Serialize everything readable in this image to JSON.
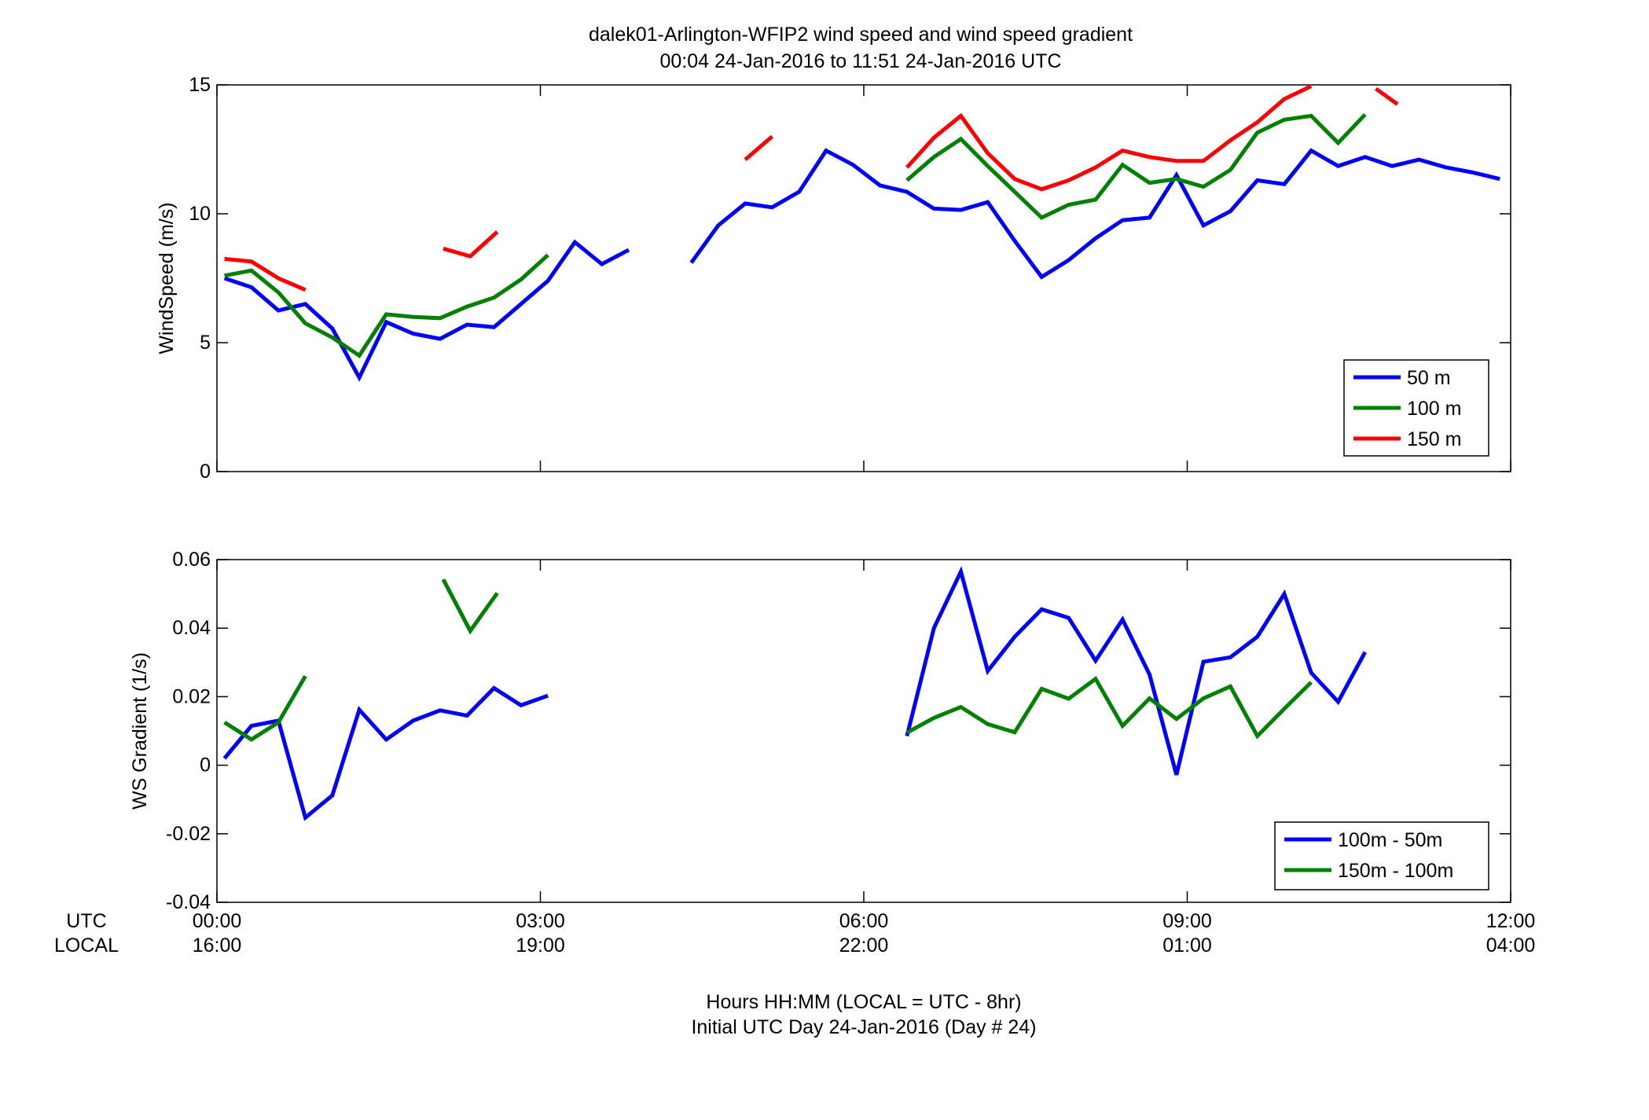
{
  "figure": {
    "title_line1": "dalek01-Arlington-WFIP2  wind speed and wind speed gradient",
    "title_line2": "00:04 24-Jan-2016 to 11:51 24-Jan-2016  UTC",
    "row_label_utc": "UTC",
    "row_label_local": "LOCAL",
    "xlabel_line1": "Hours HH:MM  (LOCAL = UTC - 8hr)",
    "xlabel_line2": "Initial UTC Day 24-Jan-2016 (Day # 24)",
    "x_ticks_utc": [
      "00:00",
      "03:00",
      "06:00",
      "09:00",
      "12:00"
    ],
    "x_ticks_local": [
      "16:00",
      "19:00",
      "22:00",
      "01:00",
      "04:00"
    ],
    "x_tick_hours": [
      0,
      3,
      6,
      9,
      12
    ]
  },
  "chart_data": [
    {
      "type": "line",
      "ylabel": "WindSpeed (m/s)",
      "xlim": [
        0,
        12
      ],
      "ylim": [
        0,
        15
      ],
      "yticks": [
        0,
        5,
        10,
        15
      ],
      "ytick_labels": [
        "0",
        "5",
        "10",
        "15"
      ],
      "grid": false,
      "legend_position": "bottom-right",
      "series": [
        {
          "name": "50 m",
          "color": "#0000ff",
          "points": [
            [
              0.07,
              7.5
            ],
            [
              0.32,
              7.15
            ],
            [
              0.57,
              6.25
            ],
            [
              0.82,
              6.5
            ],
            [
              1.07,
              5.55
            ],
            [
              1.32,
              3.65
            ],
            [
              1.57,
              5.8
            ],
            [
              1.82,
              5.35
            ],
            [
              2.07,
              5.15
            ],
            [
              2.32,
              5.7
            ],
            [
              2.57,
              5.6
            ],
            [
              2.82,
              6.5
            ],
            [
              3.07,
              7.4
            ],
            [
              3.32,
              8.9
            ],
            [
              3.57,
              8.05
            ],
            [
              3.82,
              8.6
            ],
            null,
            [
              4.4,
              8.1
            ],
            [
              4.65,
              9.55
            ],
            [
              4.9,
              10.4
            ],
            [
              5.15,
              10.25
            ],
            [
              5.4,
              10.85
            ],
            [
              5.65,
              12.45
            ],
            [
              5.9,
              11.9
            ],
            [
              6.15,
              11.1
            ],
            [
              6.4,
              10.85
            ],
            [
              6.65,
              10.2
            ],
            [
              6.9,
              10.15
            ],
            [
              7.15,
              10.45
            ],
            [
              7.4,
              8.95
            ],
            [
              7.65,
              7.55
            ],
            [
              7.9,
              8.2
            ],
            [
              8.15,
              9.05
            ],
            [
              8.4,
              9.75
            ],
            [
              8.65,
              9.85
            ],
            [
              8.9,
              11.5
            ],
            [
              9.15,
              9.55
            ],
            [
              9.4,
              10.1
            ],
            [
              9.65,
              11.3
            ],
            [
              9.9,
              11.15
            ],
            [
              10.15,
              12.45
            ],
            [
              10.4,
              11.85
            ],
            [
              10.65,
              12.2
            ],
            [
              10.9,
              11.85
            ],
            [
              11.15,
              12.1
            ],
            [
              11.4,
              11.8
            ],
            [
              11.65,
              11.6
            ],
            [
              11.9,
              11.35
            ]
          ]
        },
        {
          "name": "100 m",
          "color": "#008000",
          "points": [
            [
              0.07,
              7.6
            ],
            [
              0.32,
              7.8
            ],
            [
              0.57,
              6.95
            ],
            [
              0.82,
              5.75
            ],
            [
              1.07,
              5.2
            ],
            [
              1.32,
              4.5
            ],
            [
              1.57,
              6.1
            ],
            [
              1.82,
              6.0
            ],
            [
              2.07,
              5.95
            ],
            [
              2.32,
              6.4
            ],
            [
              2.57,
              6.75
            ],
            [
              2.82,
              7.45
            ],
            [
              3.07,
              8.4
            ],
            null,
            [
              6.4,
              11.3
            ],
            [
              6.65,
              12.2
            ],
            [
              6.9,
              12.9
            ],
            [
              7.15,
              11.85
            ],
            [
              7.4,
              10.85
            ],
            [
              7.65,
              9.85
            ],
            [
              7.9,
              10.35
            ],
            [
              8.15,
              10.55
            ],
            [
              8.4,
              11.9
            ],
            [
              8.65,
              11.2
            ],
            [
              8.9,
              11.35
            ],
            [
              9.15,
              11.05
            ],
            [
              9.4,
              11.7
            ],
            [
              9.65,
              13.15
            ],
            [
              9.9,
              13.65
            ],
            [
              10.15,
              13.8
            ],
            [
              10.4,
              12.75
            ],
            [
              10.65,
              13.85
            ]
          ]
        },
        {
          "name": "150 m",
          "color": "#ff0000",
          "points": [
            [
              0.07,
              8.25
            ],
            [
              0.32,
              8.15
            ],
            [
              0.57,
              7.5
            ],
            [
              0.82,
              7.05
            ],
            null,
            [
              2.1,
              8.65
            ],
            [
              2.35,
              8.35
            ],
            [
              2.6,
              9.3
            ],
            null,
            [
              4.9,
              12.1
            ],
            [
              5.15,
              13.0
            ],
            null,
            [
              6.4,
              11.8
            ],
            [
              6.65,
              12.95
            ],
            [
              6.9,
              13.8
            ],
            [
              7.15,
              12.35
            ],
            [
              7.4,
              11.35
            ],
            [
              7.65,
              10.95
            ],
            [
              7.9,
              11.3
            ],
            [
              8.15,
              11.8
            ],
            [
              8.4,
              12.45
            ],
            [
              8.65,
              12.2
            ],
            [
              8.9,
              12.05
            ],
            [
              9.15,
              12.05
            ],
            [
              9.4,
              12.85
            ],
            [
              9.65,
              13.55
            ],
            [
              9.9,
              14.45
            ],
            [
              10.15,
              14.95
            ],
            null,
            [
              10.75,
              14.85
            ],
            [
              10.95,
              14.25
            ]
          ]
        }
      ]
    },
    {
      "type": "line",
      "ylabel": "WS Gradient (1/s)",
      "xlim": [
        0,
        12
      ],
      "ylim": [
        -0.04,
        0.06
      ],
      "yticks": [
        -0.04,
        -0.02,
        0,
        0.02,
        0.04,
        0.06
      ],
      "ytick_labels": [
        "-0.04",
        "-0.02",
        "0",
        "0.02",
        "0.04",
        "0.06"
      ],
      "grid": false,
      "legend_position": "bottom-right",
      "series": [
        {
          "name": "100m - 50m",
          "color": "#0000ff",
          "points": [
            [
              0.07,
              0.002
            ],
            [
              0.32,
              0.0115
            ],
            [
              0.57,
              0.013
            ],
            [
              0.82,
              -0.0153
            ],
            [
              1.07,
              -0.0088
            ],
            [
              1.32,
              0.0162
            ],
            [
              1.57,
              0.0075
            ],
            [
              1.82,
              0.013
            ],
            [
              2.07,
              0.016
            ],
            [
              2.32,
              0.0145
            ],
            [
              2.57,
              0.0225
            ],
            [
              2.82,
              0.0175
            ],
            [
              3.07,
              0.0203
            ],
            null,
            [
              6.4,
              0.0085
            ],
            [
              6.65,
              0.04
            ],
            [
              6.9,
              0.0565
            ],
            [
              7.15,
              0.0275
            ],
            [
              7.4,
              0.0375
            ],
            [
              7.65,
              0.0455
            ],
            [
              7.9,
              0.043
            ],
            [
              8.15,
              0.0305
            ],
            [
              8.4,
              0.0425
            ],
            [
              8.65,
              0.0265
            ],
            [
              8.9,
              -0.0028
            ],
            [
              9.15,
              0.0302
            ],
            [
              9.4,
              0.0315
            ],
            [
              9.65,
              0.0375
            ],
            [
              9.9,
              0.05
            ],
            [
              10.15,
              0.027
            ],
            [
              10.4,
              0.0185
            ],
            [
              10.65,
              0.033
            ]
          ]
        },
        {
          "name": "150m - 100m",
          "color": "#008000",
          "points": [
            [
              0.07,
              0.0125
            ],
            [
              0.32,
              0.0075
            ],
            [
              0.57,
              0.0125
            ],
            [
              0.82,
              0.026
            ],
            null,
            [
              2.1,
              0.0542
            ],
            [
              2.35,
              0.0392
            ],
            [
              2.6,
              0.0502
            ],
            null,
            [
              6.4,
              0.0095
            ],
            [
              6.65,
              0.0138
            ],
            [
              6.9,
              0.017
            ],
            [
              7.15,
              0.012
            ],
            [
              7.4,
              0.0096
            ],
            [
              7.65,
              0.0223
            ],
            [
              7.9,
              0.0194
            ],
            [
              8.15,
              0.0252
            ],
            [
              8.4,
              0.0115
            ],
            [
              8.65,
              0.0195
            ],
            [
              8.9,
              0.0135
            ],
            [
              9.15,
              0.0195
            ],
            [
              9.4,
              0.023
            ],
            [
              9.65,
              0.0085
            ],
            [
              9.9,
              0.0165
            ],
            [
              10.15,
              0.0242
            ]
          ]
        }
      ]
    }
  ]
}
